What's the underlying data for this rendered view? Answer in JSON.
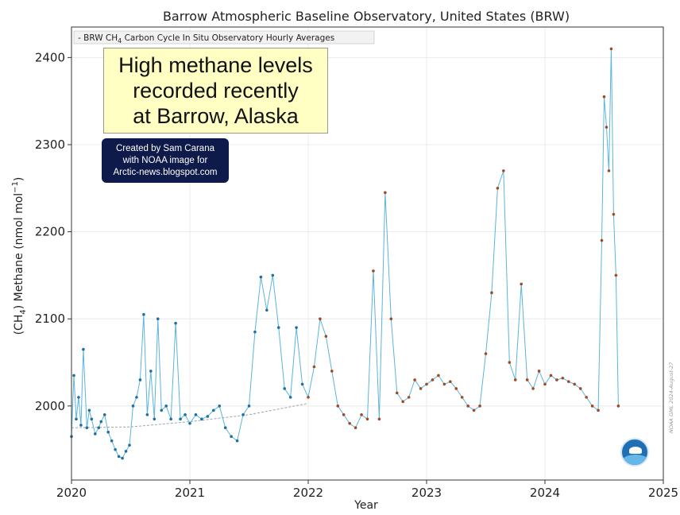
{
  "chart_data": {
    "type": "line",
    "title": "Barrow Atmospheric Baseline Observatory, United States (BRW)",
    "xlabel": "Year",
    "ylabel_main": "(CH",
    "ylabel_sub": "4",
    "ylabel_rest": ") Methane (nmol mol",
    "ylabel_sup": "−1",
    "ylabel_close": ")",
    "xlim": [
      2020.0,
      2025.0
    ],
    "ylim": [
      1915,
      2435
    ],
    "x_ticks": [
      2020,
      2021,
      2022,
      2023,
      2024,
      2025
    ],
    "x_tick_labels": [
      "2020",
      "2021",
      "2022",
      "2023",
      "2024",
      "2025"
    ],
    "y_ticks": [
      2000,
      2100,
      2200,
      2300,
      2400
    ],
    "y_tick_labels": [
      "2000",
      "2100",
      "2200",
      "2300",
      "2400"
    ],
    "grid": true,
    "legend_position": "top-left",
    "legend": {
      "marker": "-",
      "text_before": "BRW CH",
      "text_sub": "4",
      "text_after": " Carbon Cycle In Situ Observatory Hourly Averages"
    },
    "colors": {
      "line": "#5ab4dc",
      "older": "#1f6fa3",
      "recent": "#9e4a22",
      "trend": "#9aa7ae"
    },
    "series": [
      {
        "name": "BRW CH4 Carbon Cycle In Situ Observatory Hourly Averages",
        "x": [
          2020.0,
          2020.02,
          2020.04,
          2020.06,
          2020.08,
          2020.1,
          2020.13,
          2020.15,
          2020.17,
          2020.2,
          2020.23,
          2020.25,
          2020.28,
          2020.31,
          2020.34,
          2020.37,
          2020.4,
          2020.43,
          2020.46,
          2020.49,
          2020.52,
          2020.55,
          2020.58,
          2020.61,
          2020.64,
          2020.67,
          2020.7,
          2020.73,
          2020.76,
          2020.8,
          2020.84,
          2020.88,
          2020.92,
          2020.96,
          2021.0,
          2021.05,
          2021.1,
          2021.15,
          2021.2,
          2021.25,
          2021.3,
          2021.35,
          2021.4,
          2021.45,
          2021.5,
          2021.55,
          2021.6,
          2021.65,
          2021.7,
          2021.75,
          2021.8,
          2021.85,
          2021.9,
          2021.95,
          2022.0,
          2022.05,
          2022.1,
          2022.15,
          2022.2,
          2022.25,
          2022.3,
          2022.35,
          2022.4,
          2022.45,
          2022.5,
          2022.55,
          2022.6,
          2022.65,
          2022.7,
          2022.75,
          2022.8,
          2022.85,
          2022.9,
          2022.95,
          2023.0,
          2023.05,
          2023.1,
          2023.15,
          2023.2,
          2023.25,
          2023.3,
          2023.35,
          2023.4,
          2023.45,
          2023.5,
          2023.55,
          2023.6,
          2023.65,
          2023.7,
          2023.75,
          2023.8,
          2023.85,
          2023.9,
          2023.95,
          2024.0,
          2024.05,
          2024.1,
          2024.15,
          2024.2,
          2024.25,
          2024.3,
          2024.35,
          2024.4,
          2024.45,
          2024.48,
          2024.5,
          2024.52,
          2024.54,
          2024.56,
          2024.58,
          2024.6,
          2024.62
        ],
        "y": [
          1965,
          2035,
          1985,
          2010,
          1978,
          2065,
          1975,
          1995,
          1985,
          1968,
          1975,
          1982,
          1990,
          1970,
          1960,
          1950,
          1942,
          1940,
          1948,
          1955,
          2000,
          2010,
          2030,
          2105,
          1990,
          2040,
          1985,
          2100,
          1995,
          2000,
          1985,
          2095,
          1985,
          1990,
          1980,
          1990,
          1985,
          1988,
          1995,
          2000,
          1975,
          1965,
          1960,
          1990,
          2000,
          2085,
          2148,
          2110,
          2150,
          2090,
          2020,
          2010,
          2090,
          2025,
          2010,
          2045,
          2100,
          2080,
          2040,
          2000,
          1990,
          1980,
          1975,
          1990,
          1985,
          2155,
          1985,
          2245,
          2100,
          2015,
          2005,
          2010,
          2030,
          2020,
          2025,
          2030,
          2035,
          2025,
          2028,
          2020,
          2010,
          2000,
          1995,
          2000,
          2060,
          2130,
          2250,
          2270,
          2050,
          2030,
          2140,
          2030,
          2020,
          2040,
          2025,
          2035,
          2030,
          2032,
          2028,
          2025,
          2020,
          2010,
          2000,
          1995,
          2190,
          2355,
          2320,
          2270,
          2410,
          2220,
          2150,
          2000
        ]
      }
    ],
    "trend_x": [
      2020.0,
      2020.5,
      2021.0,
      2021.5,
      2022.0
    ],
    "trend_y": [
      1975,
      1976,
      1982,
      1990,
      2003
    ],
    "annotations": {
      "callout_lines": [
        "High methane levels",
        "recorded recently",
        "at Barrow, Alaska"
      ],
      "credit_lines": [
        "Created by Sam Carana",
        "with NOAA image for",
        "Arctic-news.blogspot.com"
      ],
      "watermark": "NOAA GML 2024-August-27",
      "logo_text": "NOAA"
    }
  }
}
